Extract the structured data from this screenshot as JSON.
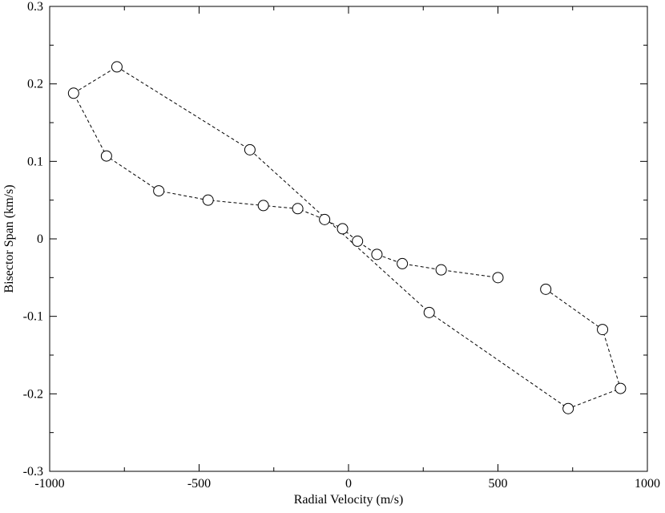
{
  "chart_data": {
    "type": "scatter",
    "title": "",
    "xlabel": "Radial Velocity (m/s)",
    "ylabel": "Bisector Span (km/s)",
    "xlim": [
      -1000,
      1000
    ],
    "ylim": [
      -0.3,
      0.3
    ],
    "grid": false,
    "legend": "none",
    "x_ticks": [
      -1000,
      -500,
      0,
      500,
      1000
    ],
    "x_tick_labels": [
      "-1000",
      "-500",
      "0",
      "500",
      "1000"
    ],
    "y_ticks": [
      -0.3,
      -0.2,
      -0.1,
      0,
      0.1,
      0.2,
      0.3
    ],
    "y_tick_labels": [
      "-0.3",
      "-0.2",
      "-0.1",
      "0",
      "0.1",
      "0.2",
      "0.3"
    ],
    "marker": "open-circle",
    "line_style": "dashed",
    "colors": {
      "line": "#000000",
      "marker": "#000000",
      "background": "#ffffff"
    },
    "series": [
      {
        "x": [
          660,
          850,
          910,
          735,
          270,
          -330,
          -775,
          -920,
          -810,
          -635,
          -470,
          -285,
          -170,
          -80,
          -20,
          30,
          95,
          180,
          310,
          500
        ],
        "y": [
          -0.065,
          -0.117,
          -0.193,
          -0.219,
          -0.095,
          0.115,
          0.222,
          0.188,
          0.107,
          0.062,
          0.05,
          0.043,
          0.039,
          0.025,
          0.013,
          -0.003,
          -0.02,
          -0.032,
          -0.04,
          -0.05
        ]
      }
    ]
  }
}
